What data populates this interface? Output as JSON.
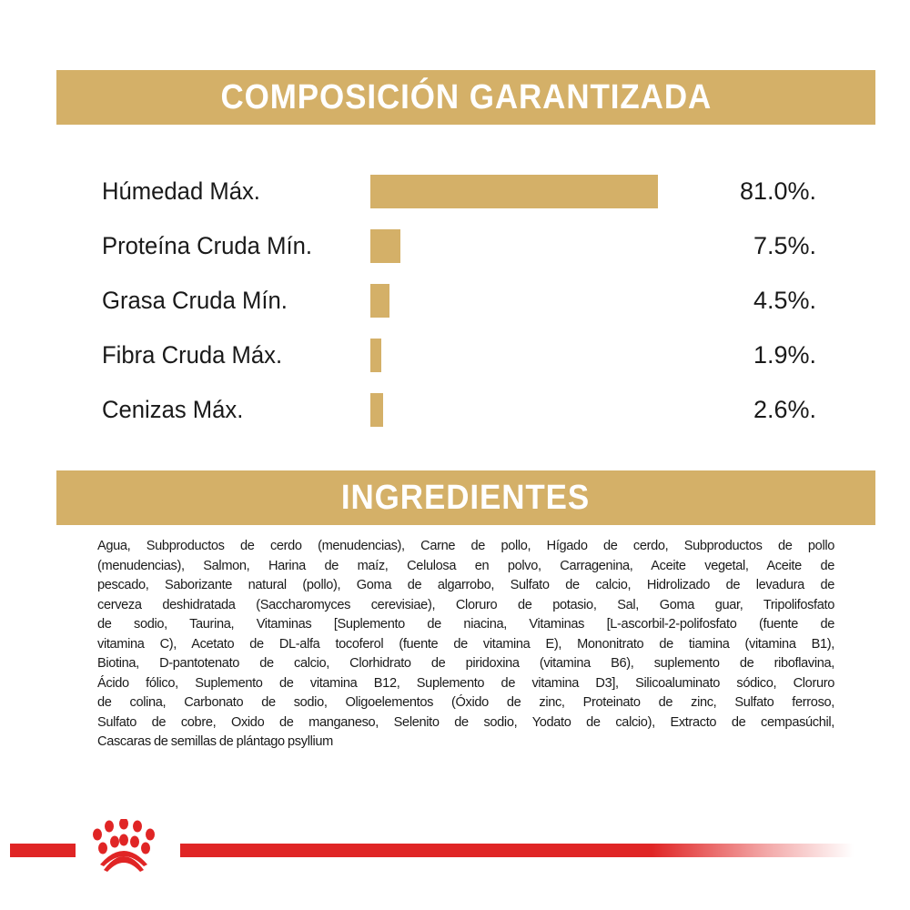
{
  "composition": {
    "title": "COMPOSICIÓN GARANTIZADA",
    "rows": [
      {
        "label": "Húmedad Máx.",
        "value": 81.0,
        "display": "81.0%."
      },
      {
        "label": "Proteína Cruda Mín.",
        "value": 7.5,
        "display": "7.5%."
      },
      {
        "label": "Grasa Cruda Mín.",
        "value": 4.5,
        "display": "4.5%."
      },
      {
        "label": "Fibra Cruda Máx.",
        "value": 1.9,
        "display": "1.9%."
      },
      {
        "label": "Cenizas Máx.",
        "value": 2.6,
        "display": "2.6%."
      }
    ],
    "bar_color": "#d4b068"
  },
  "ingredients": {
    "title": "INGREDIENTES",
    "lines": [
      "Agua, Subproductos de cerdo (menudencias), Carne de pollo, Hígado de cerdo, Subproductos de pollo",
      "(menudencias), Salmon, Harina de maíz, Celulosa en polvo, Carragenina, Aceite vegetal, Aceite de",
      "pescado, Saborizante natural (pollo), Goma de algarrobo, Sulfato de calcio, Hidrolizado de levadura de",
      "cerveza deshidratada (Saccharomyces cerevisiae), Cloruro de potasio, Sal, Goma guar, Tripolifosfato",
      "de sodio, Taurina, Vitaminas [Suplemento de niacina, Vitaminas [L-ascorbil-2-polifosfato (fuente de",
      "vitamina C), Acetato de DL-alfa tocoferol (fuente de vitamina E), Mononitrato de tiamina (vitamina B1),",
      "Biotina, D-pantotenato de calcio, Clorhidrato de piridoxina (vitamina B6), suplemento de riboflavina,",
      "Ácido fólico, Suplemento de vitamina B12, Suplemento de vitamina D3], Silicoaluminato sódico, Cloruro",
      "de colina, Carbonato de sodio, Oligoelementos (Óxido de zinc, Proteinato de zinc, Sulfato ferroso,",
      "Sulfato de cobre, Oxido de manganeso, Selenito de sodio, Yodato de calcio), Extracto de cempasúchil,",
      "Cascaras de semillas de plántago psyllium"
    ]
  },
  "colors": {
    "gold": "#d4b068",
    "brand_red": "#e02525"
  },
  "footer": {
    "logo": "royal-crown-logo"
  }
}
